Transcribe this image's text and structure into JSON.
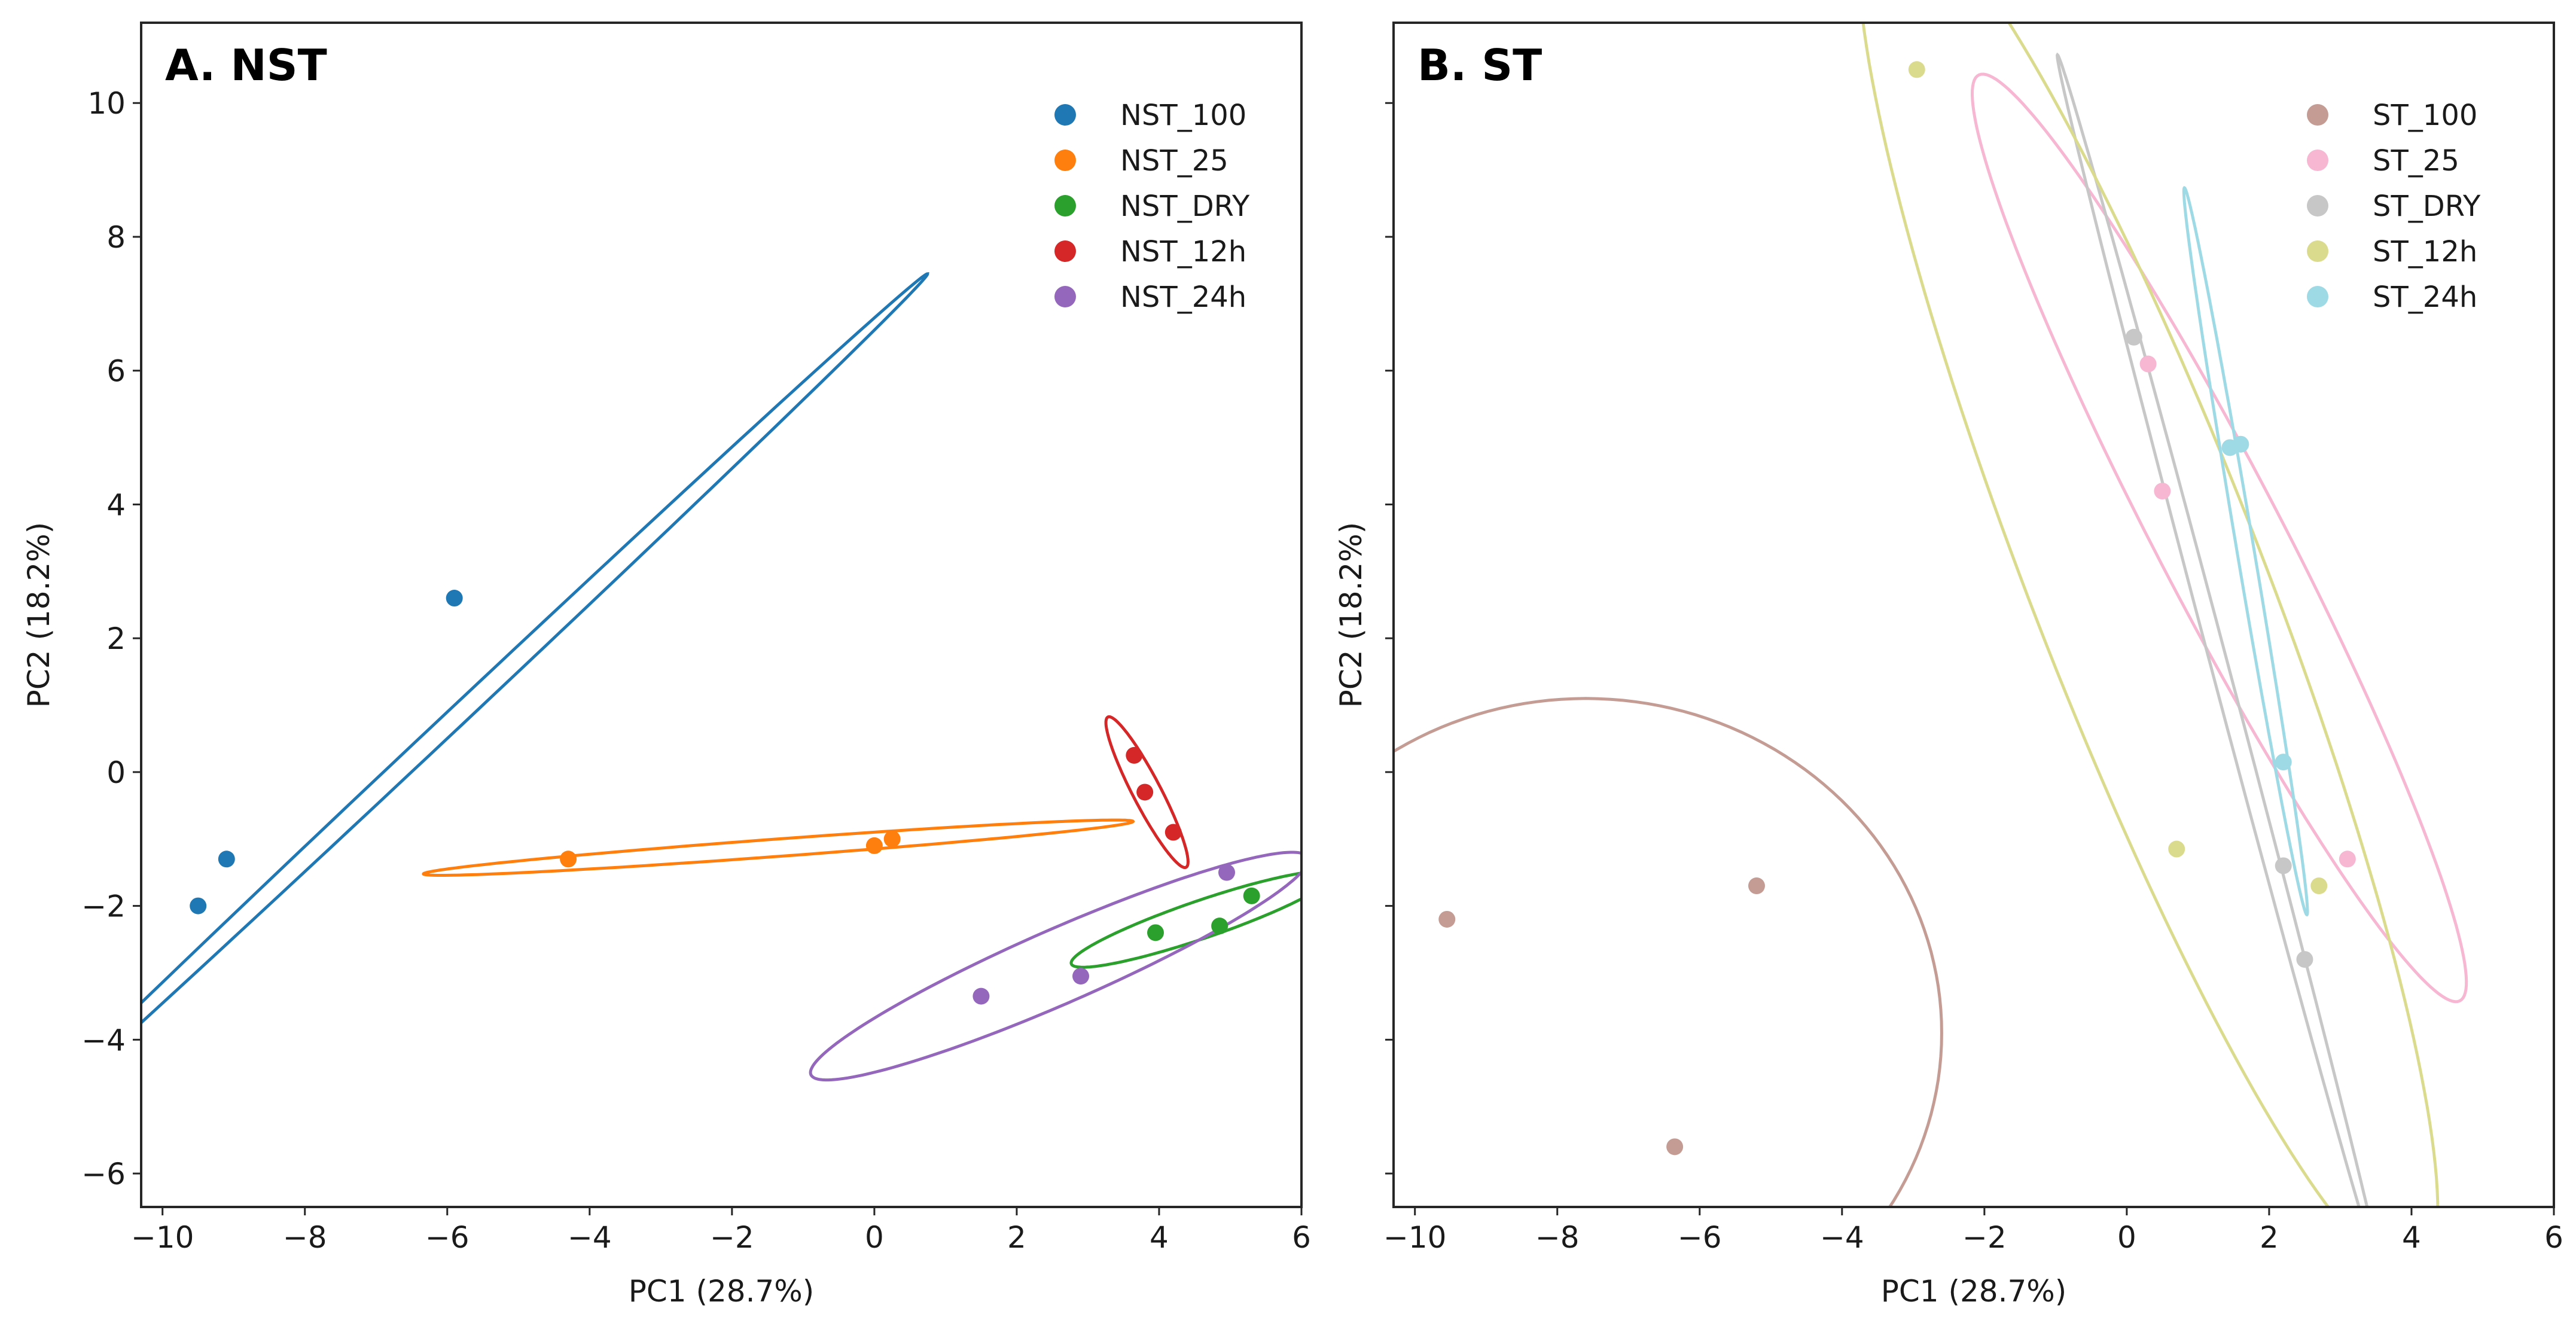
{
  "chart_data": [
    {
      "type": "scatter",
      "title": "A. NST",
      "xlabel": "PC1 (28.7%)",
      "ylabel": "PC2 (18.2%)",
      "xlim": [
        -10.3,
        6
      ],
      "ylim": [
        -6.5,
        11.2
      ],
      "xticks": [
        -10,
        -8,
        -6,
        -4,
        -2,
        0,
        2,
        4,
        6
      ],
      "xtick_labels": [
        "−10",
        "−8",
        "−6",
        "−4",
        "−2",
        "0",
        "2",
        "4",
        "6"
      ],
      "yticks": [
        -6,
        -4,
        -2,
        0,
        2,
        4,
        6,
        8,
        10
      ],
      "ytick_labels": [
        "−6",
        "−4",
        "−2",
        "0",
        "2",
        "4",
        "6",
        "8",
        "10"
      ],
      "legend_position": "top-right",
      "series": [
        {
          "name": "NST_100",
          "color": "#1f77b4",
          "points": [
            [
              -9.5,
              -2.0
            ],
            [
              -9.1,
              -1.3
            ],
            [
              -5.9,
              2.6
            ]
          ],
          "ellipse": {
            "cx": -5.9,
            "cy": 0.8,
            "a": 9.4,
            "b": 0.14,
            "angle": 45
          }
        },
        {
          "name": "NST_25",
          "color": "#ff7f0e",
          "points": [
            [
              -4.3,
              -1.3
            ],
            [
              0.0,
              -1.1
            ],
            [
              0.25,
              -1.0
            ]
          ],
          "ellipse": {
            "cx": -1.35,
            "cy": -1.13,
            "a": 5.0,
            "b": 0.13,
            "angle": 4.5
          }
        },
        {
          "name": "NST_DRY",
          "color": "#2ca02c",
          "points": [
            [
              3.95,
              -2.4
            ],
            [
              4.85,
              -2.3
            ],
            [
              5.3,
              -1.85
            ]
          ],
          "ellipse": {
            "cx": 4.6,
            "cy": -2.2,
            "a": 1.95,
            "b": 0.28,
            "angle": 20
          }
        },
        {
          "name": "NST_12h",
          "color": "#d62728",
          "points": [
            [
              3.65,
              0.25
            ],
            [
              3.8,
              -0.3
            ],
            [
              4.2,
              -0.9
            ]
          ],
          "ellipse": {
            "cx": 3.83,
            "cy": -0.3,
            "a": 1.25,
            "b": 0.2,
            "angle": -64
          }
        },
        {
          "name": "NST_24h",
          "color": "#9467bd",
          "points": [
            [
              1.5,
              -3.35
            ],
            [
              2.9,
              -3.05
            ],
            [
              4.95,
              -1.5
            ]
          ],
          "ellipse": {
            "cx": 2.6,
            "cy": -2.9,
            "a": 3.85,
            "b": 0.55,
            "angle": 25
          }
        }
      ]
    },
    {
      "type": "scatter",
      "title": "B. ST",
      "xlabel": "PC1 (28.7%)",
      "ylabel": "PC2 (18.2%)",
      "xlim": [
        -10.3,
        6
      ],
      "ylim": [
        -6.5,
        11.2
      ],
      "xticks": [
        -10,
        -8,
        -6,
        -4,
        -2,
        0,
        2,
        4,
        6
      ],
      "xtick_labels": [
        "−10",
        "−8",
        "−6",
        "−4",
        "−2",
        "0",
        "2",
        "4",
        "6"
      ],
      "yticks": [
        -6,
        -4,
        -2,
        0,
        2,
        4,
        6,
        8,
        10
      ],
      "legend_position": "top-right",
      "series": [
        {
          "name": "ST_100",
          "color": "#c49c94",
          "points": [
            [
              -9.55,
              -2.2
            ],
            [
              -5.2,
              -1.7
            ],
            [
              -6.35,
              -5.6
            ]
          ],
          "ellipse": {
            "cx": -7.6,
            "cy": -3.9,
            "a": 5.0,
            "b": 5.0,
            "angle": 0
          }
        },
        {
          "name": "ST_25",
          "color": "#f7b6d2",
          "points": [
            [
              0.3,
              6.1
            ],
            [
              0.5,
              4.2
            ],
            [
              3.1,
              -1.3
            ]
          ],
          "ellipse": {
            "cx": 1.3,
            "cy": 3.5,
            "a": 7.7,
            "b": 0.9,
            "angle": -64
          }
        },
        {
          "name": "ST_DRY",
          "color": "#c7c7c7",
          "points": [
            [
              0.1,
              6.5
            ],
            [
              2.2,
              -1.4
            ],
            [
              2.5,
              -2.8
            ]
          ],
          "ellipse": {
            "cx": 1.3,
            "cy": 1.6,
            "a": 9.4,
            "b": 0.12,
            "angle": -76
          }
        },
        {
          "name": "ST_12h",
          "color": "#dbdb8d",
          "points": [
            [
              -2.95,
              10.5
            ],
            [
              0.7,
              -1.15
            ],
            [
              2.7,
              -1.7
            ]
          ],
          "ellipse": {
            "cx": 0.3,
            "cy": 2.8,
            "a": 11.0,
            "b": 1.65,
            "angle": -70
          }
        },
        {
          "name": "ST_24h",
          "color": "#9edae5",
          "points": [
            [
              1.45,
              4.85
            ],
            [
              1.6,
              4.9
            ],
            [
              2.2,
              0.15
            ]
          ],
          "ellipse": {
            "cx": 1.67,
            "cy": 3.3,
            "a": 5.5,
            "b": 0.12,
            "angle": -81
          }
        }
      ]
    }
  ]
}
